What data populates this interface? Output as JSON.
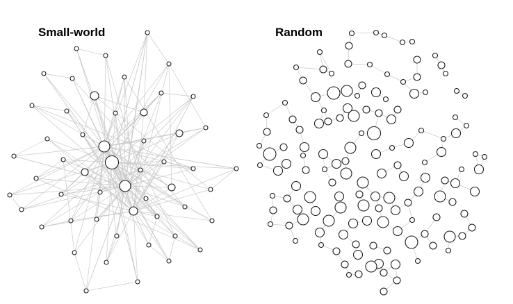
{
  "panels": [
    {
      "title": "Small-world"
    },
    {
      "title": "Random"
    }
  ],
  "colors": {
    "edge": "#c8c8c8",
    "node_stroke": "#1a1a1a",
    "node_fill": "#ffffff"
  }
}
